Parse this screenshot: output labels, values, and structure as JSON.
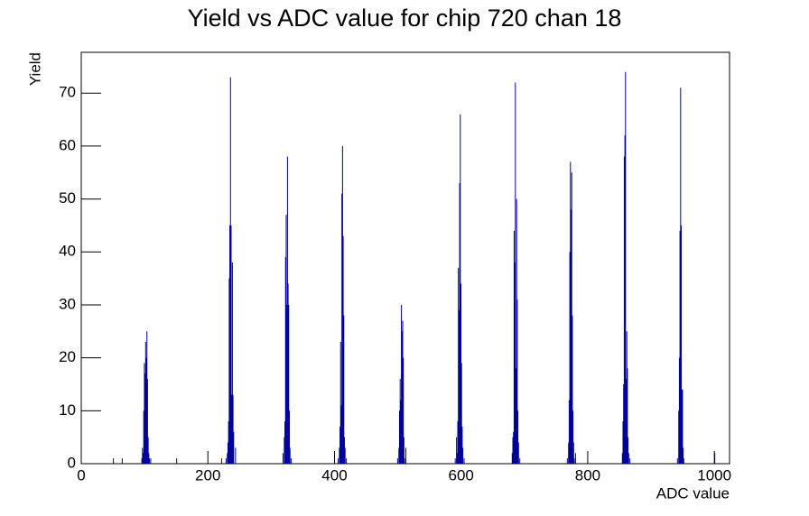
{
  "chart_data": {
    "type": "histogram",
    "title": "Yield vs ADC value for chip 720 chan 18",
    "x_label": "ADC value",
    "y_label": "Yield",
    "color": "#000099",
    "xlim": [
      0,
      1024
    ],
    "ylim": [
      0,
      77.7
    ],
    "xticks": [
      0,
      200,
      400,
      600,
      800,
      1000
    ],
    "yticks": [
      0,
      10,
      20,
      30,
      40,
      50,
      60,
      70
    ],
    "x": [
      50,
      64,
      95,
      96,
      97,
      98,
      99,
      100,
      101,
      102,
      103,
      104,
      105,
      106,
      107,
      109,
      150,
      221,
      228,
      230,
      231,
      232,
      233,
      234,
      235,
      236,
      237,
      238,
      239,
      240,
      243,
      318,
      320,
      321,
      322,
      323,
      324,
      325,
      326,
      327,
      328,
      329,
      331,
      405,
      407,
      408,
      409,
      410,
      411,
      412,
      413,
      414,
      415,
      416,
      418,
      499,
      501,
      502,
      503,
      504,
      505,
      506,
      507,
      508,
      509,
      510,
      512,
      590,
      592,
      593,
      594,
      595,
      596,
      597,
      598,
      599,
      600,
      601,
      602,
      604,
      680,
      681,
      682,
      683,
      684,
      685,
      686,
      687,
      688,
      689,
      690,
      692,
      767,
      769,
      770,
      771,
      772,
      773,
      774,
      775,
      776,
      777,
      778,
      780,
      854,
      855,
      856,
      857,
      858,
      859,
      860,
      861,
      862,
      863,
      864,
      866,
      941,
      943,
      944,
      945,
      946,
      947,
      948,
      949,
      950,
      951,
      1000
    ],
    "values": [
      1,
      1,
      1,
      3,
      2,
      10,
      19,
      17,
      23,
      20,
      25,
      16,
      5,
      2,
      1,
      1,
      1,
      1,
      1,
      2,
      4,
      8,
      35,
      45,
      73,
      45,
      13,
      38,
      13,
      6,
      3,
      2,
      5,
      8,
      39,
      47,
      30,
      58,
      34,
      30,
      10,
      3,
      1,
      1,
      3,
      7,
      23,
      11,
      51,
      60,
      43,
      28,
      5,
      3,
      1,
      1,
      3,
      10,
      16,
      12,
      30,
      25,
      27,
      20,
      5,
      1,
      3,
      1,
      5,
      2,
      8,
      37,
      29,
      53,
      66,
      34,
      19,
      7,
      3,
      1,
      2,
      5,
      6,
      44,
      38,
      72,
      18,
      50,
      31,
      10,
      4,
      1,
      1,
      4,
      12,
      40,
      57,
      48,
      55,
      28,
      10,
      4,
      1,
      2,
      2,
      8,
      15,
      58,
      62,
      74,
      16,
      25,
      18,
      5,
      2,
      1,
      1,
      10,
      20,
      44,
      71,
      45,
      14,
      14,
      3,
      1,
      2
    ]
  }
}
